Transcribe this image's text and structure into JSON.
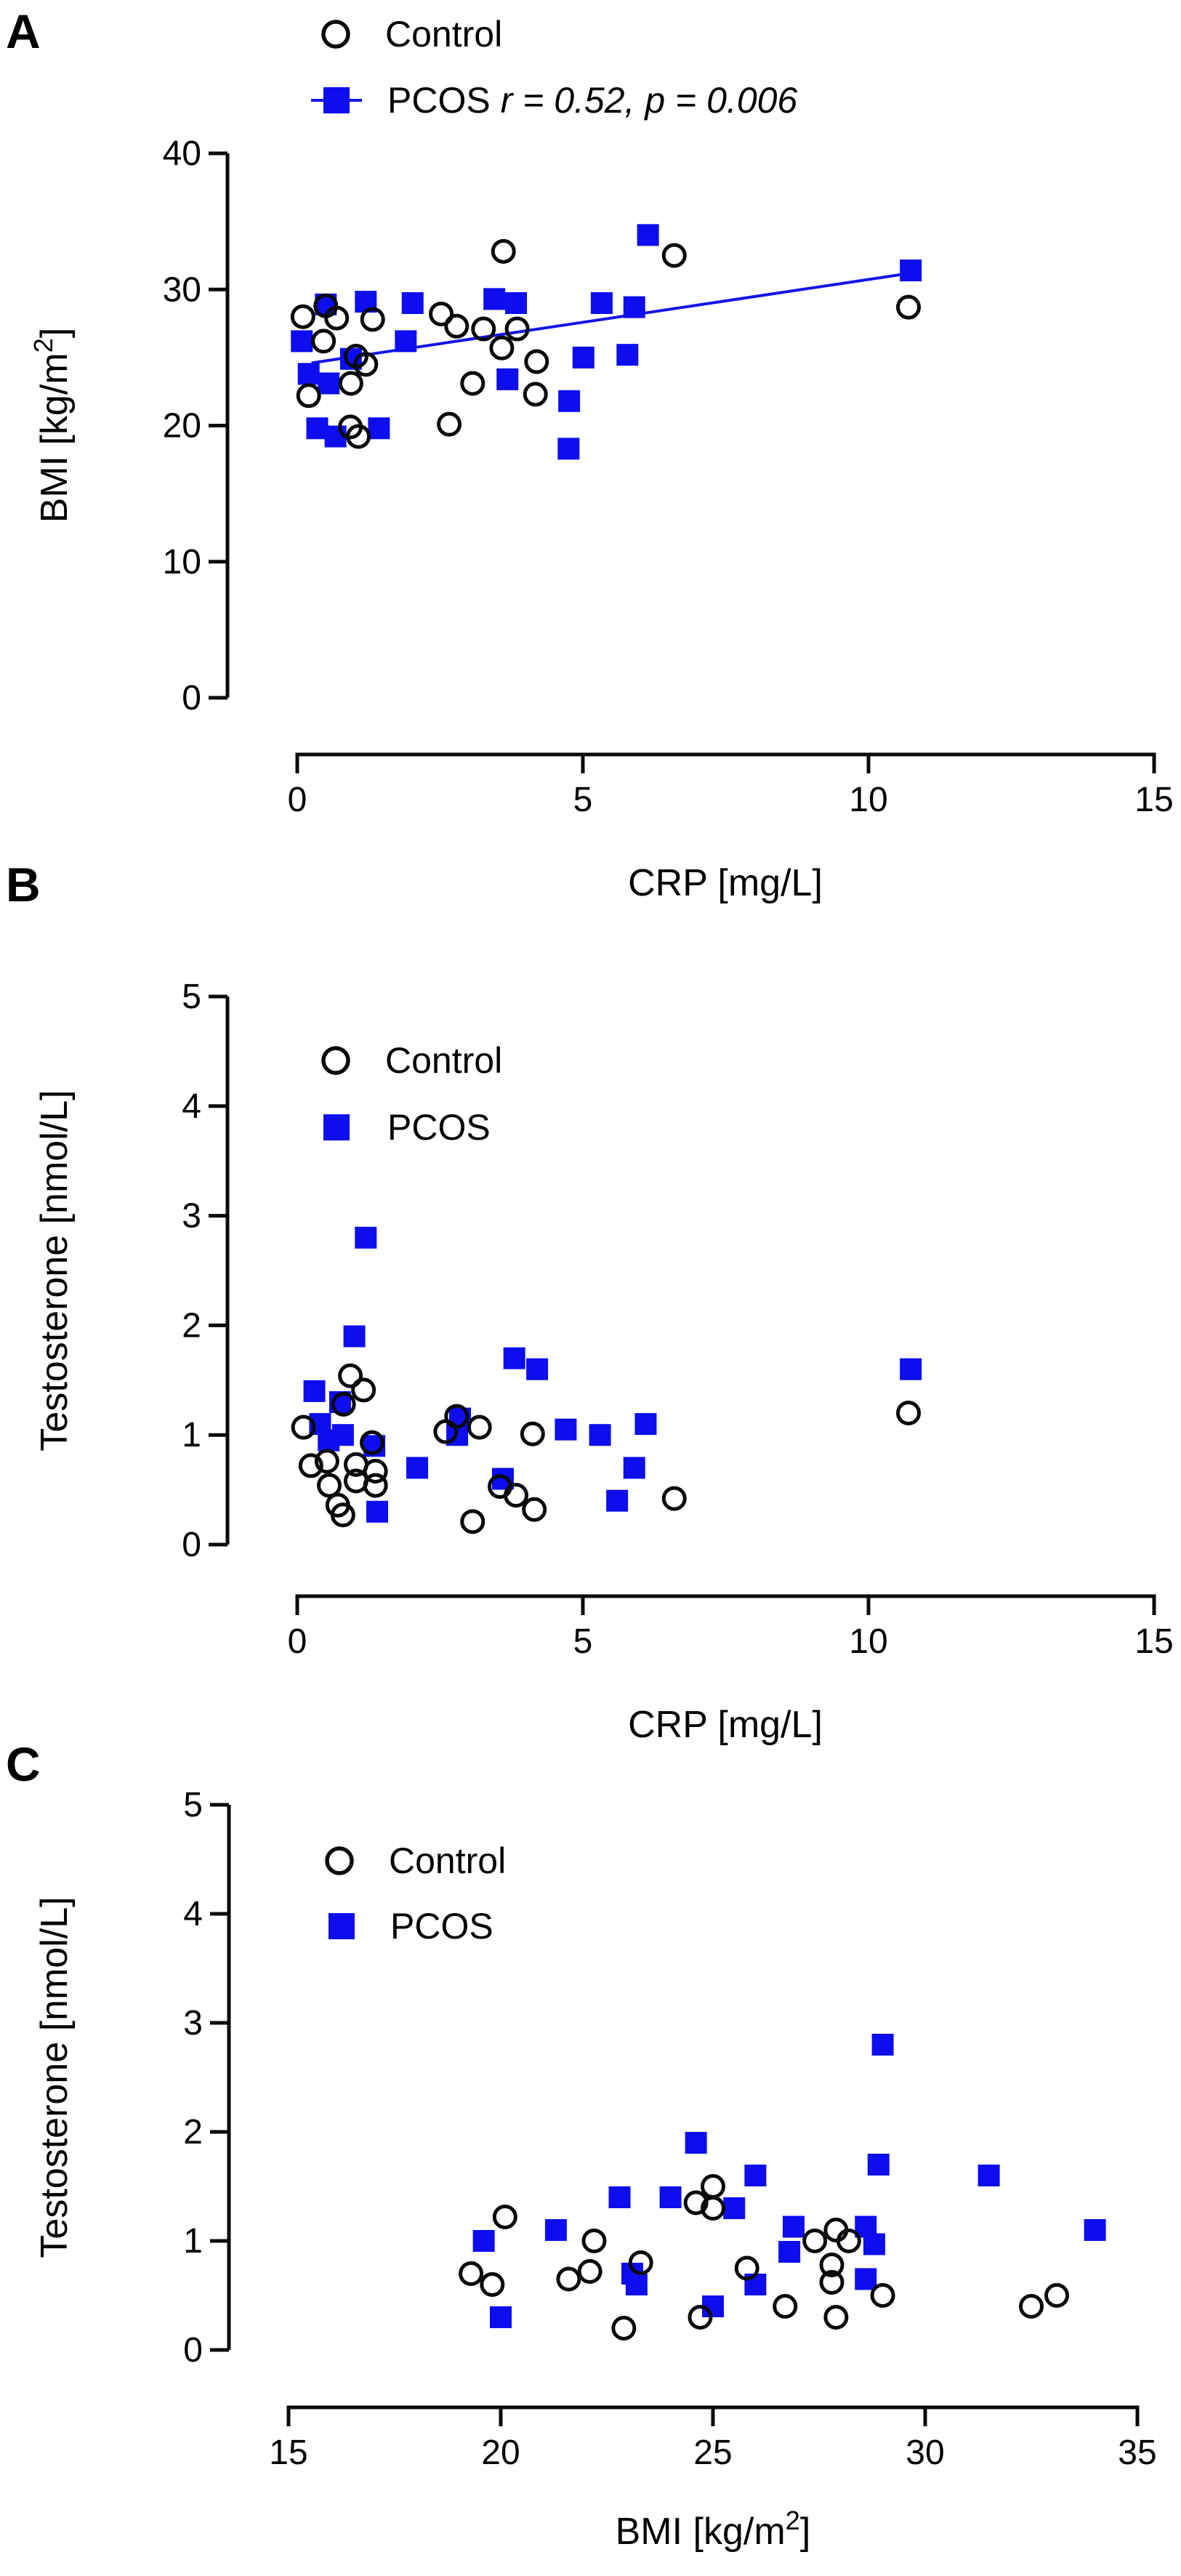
{
  "figure": {
    "background": "#ffffff",
    "marker_color_control": "#0a0a0a",
    "marker_color_pcos": "#0d0df0",
    "trend_color": "#1515e8"
  },
  "chart_data": [
    {
      "type": "scatter",
      "panel_label": "A",
      "xlabel": "CRP [mg/L]",
      "xlabel_parts": [
        {
          "t": "CRP [mg/L]"
        }
      ],
      "ylabel": "BMI [kg/m2]",
      "ylabel_parts": [
        {
          "t": "BMI [kg/m"
        },
        {
          "t": "2",
          "sup": true
        },
        {
          "t": "]"
        }
      ],
      "xlim": [
        0,
        15
      ],
      "ylim": [
        0,
        40
      ],
      "xticks": [
        0,
        5,
        10,
        15
      ],
      "yticks": [
        0,
        10,
        20,
        30,
        40
      ],
      "grid": false,
      "legend": {
        "position": "top-left-above-plot",
        "items": [
          {
            "label": "Control",
            "marker": "circle",
            "color": "#0a0a0a"
          },
          {
            "label": "PCOS ",
            "stats": "r = 0.52, p = 0.006",
            "marker": "square",
            "color": "#0d0df0",
            "line_through_marker": true
          }
        ]
      },
      "series": [
        {
          "name": "Control",
          "marker": "circle",
          "color": "#0a0a0a",
          "points": [
            [
              0.1,
              28.0
            ],
            [
              0.2,
              22.2
            ],
            [
              0.46,
              26.2
            ],
            [
              0.5,
              28.8
            ],
            [
              0.69,
              27.9
            ],
            [
              0.93,
              19.9
            ],
            [
              0.94,
              23.1
            ],
            [
              1.03,
              25.1
            ],
            [
              1.07,
              19.2
            ],
            [
              1.2,
              24.5
            ],
            [
              1.32,
              27.8
            ],
            [
              2.52,
              28.2
            ],
            [
              2.66,
              20.1
            ],
            [
              2.79,
              27.3
            ],
            [
              3.07,
              23.1
            ],
            [
              3.26,
              27.1
            ],
            [
              3.58,
              25.7
            ],
            [
              3.61,
              32.8
            ],
            [
              3.85,
              27.1
            ],
            [
              4.17,
              22.3
            ],
            [
              4.19,
              24.7
            ],
            [
              6.6,
              32.5
            ],
            [
              10.7,
              28.7
            ]
          ]
        },
        {
          "name": "PCOS",
          "marker": "square",
          "color": "#0d0df0",
          "points": [
            [
              0.08,
              26.2
            ],
            [
              0.2,
              23.8
            ],
            [
              0.35,
              19.8
            ],
            [
              0.5,
              28.9
            ],
            [
              0.55,
              23.1
            ],
            [
              0.67,
              19.2
            ],
            [
              0.94,
              24.9
            ],
            [
              1.2,
              29.1
            ],
            [
              1.43,
              19.8
            ],
            [
              1.9,
              26.2
            ],
            [
              2.02,
              29.0
            ],
            [
              3.45,
              29.3
            ],
            [
              3.68,
              23.4
            ],
            [
              3.83,
              29.0
            ],
            [
              4.75,
              18.3
            ],
            [
              4.76,
              21.8
            ],
            [
              5.01,
              25.0
            ],
            [
              5.33,
              29.0
            ],
            [
              5.78,
              25.2
            ],
            [
              5.9,
              28.7
            ],
            [
              6.14,
              34.0
            ],
            [
              10.74,
              31.4
            ]
          ]
        }
      ],
      "trend_line": {
        "x1": 0.25,
        "y1": 24.6,
        "x2": 10.74,
        "y2": 31.2,
        "color": "#1515e8",
        "r": "0.52",
        "p": "0.006"
      }
    },
    {
      "type": "scatter",
      "panel_label": "B",
      "xlabel": "CRP [mg/L]",
      "xlabel_parts": [
        {
          "t": "CRP [mg/L]"
        }
      ],
      "ylabel": "Testosterone [nmol/L]",
      "ylabel_parts": [
        {
          "t": "Testosterone [nmol/L]"
        }
      ],
      "xlim": [
        0,
        15
      ],
      "ylim": [
        0,
        5
      ],
      "xticks": [
        0,
        5,
        10,
        15
      ],
      "yticks": [
        0,
        1,
        2,
        3,
        4,
        5
      ],
      "grid": false,
      "legend": {
        "position": "upper-left-inside",
        "items": [
          {
            "label": "Control",
            "marker": "circle",
            "color": "#0a0a0a"
          },
          {
            "label": "PCOS",
            "marker": "square",
            "color": "#0d0df0"
          }
        ]
      },
      "series": [
        {
          "name": "Control",
          "marker": "circle",
          "color": "#0a0a0a",
          "points": [
            [
              0.11,
              1.07
            ],
            [
              0.24,
              0.72
            ],
            [
              0.52,
              0.76
            ],
            [
              0.56,
              0.54
            ],
            [
              0.71,
              0.36
            ],
            [
              0.8,
              0.27
            ],
            [
              0.81,
              1.28
            ],
            [
              0.93,
              1.54
            ],
            [
              1.03,
              0.73
            ],
            [
              1.03,
              0.58
            ],
            [
              1.16,
              1.41
            ],
            [
              1.31,
              0.93
            ],
            [
              1.37,
              0.67
            ],
            [
              1.37,
              0.54
            ],
            [
              2.6,
              1.03
            ],
            [
              2.79,
              1.17
            ],
            [
              3.07,
              0.21
            ],
            [
              3.19,
              1.07
            ],
            [
              3.55,
              0.53
            ],
            [
              3.83,
              0.45
            ],
            [
              4.12,
              1.01
            ],
            [
              4.15,
              0.32
            ],
            [
              6.6,
              0.42
            ],
            [
              10.7,
              1.2
            ]
          ]
        },
        {
          "name": "PCOS",
          "marker": "square",
          "color": "#0d0df0",
          "points": [
            [
              0.3,
              1.4
            ],
            [
              0.4,
              1.1
            ],
            [
              0.55,
              0.95
            ],
            [
              0.75,
              1.3
            ],
            [
              0.8,
              1.0
            ],
            [
              1.0,
              1.9
            ],
            [
              1.2,
              2.8
            ],
            [
              1.35,
              0.9
            ],
            [
              1.4,
              0.3
            ],
            [
              2.1,
              0.7
            ],
            [
              2.8,
              1.0
            ],
            [
              2.85,
              1.15
            ],
            [
              3.6,
              0.6
            ],
            [
              3.8,
              1.7
            ],
            [
              4.2,
              1.6
            ],
            [
              4.7,
              1.05
            ],
            [
              5.3,
              1.0
            ],
            [
              5.6,
              0.4
            ],
            [
              5.9,
              0.7
            ],
            [
              6.1,
              1.1
            ],
            [
              10.74,
              1.6
            ]
          ]
        }
      ]
    },
    {
      "type": "scatter",
      "panel_label": "C",
      "xlabel": "BMI [kg/m2]",
      "xlabel_parts": [
        {
          "t": "BMI [kg/m"
        },
        {
          "t": "2",
          "sup": true
        },
        {
          "t": "]"
        }
      ],
      "ylabel": "Testosterone [nmol/L]",
      "ylabel_parts": [
        {
          "t": "Testosterone [nmol/L]"
        }
      ],
      "xlim": [
        15,
        35
      ],
      "ylim": [
        0,
        5
      ],
      "xticks": [
        15,
        20,
        25,
        30,
        35
      ],
      "yticks": [
        0,
        1,
        2,
        3,
        4,
        5
      ],
      "grid": false,
      "legend": {
        "position": "upper-left-inside",
        "items": [
          {
            "label": "Control",
            "marker": "circle",
            "color": "#0a0a0a"
          },
          {
            "label": "PCOS",
            "marker": "square",
            "color": "#0d0df0"
          }
        ]
      },
      "series": [
        {
          "name": "Control",
          "marker": "circle",
          "color": "#0a0a0a",
          "points": [
            [
              19.3,
              0.7
            ],
            [
              19.8,
              0.6
            ],
            [
              20.1,
              1.22
            ],
            [
              21.6,
              0.65
            ],
            [
              22.1,
              0.72
            ],
            [
              22.2,
              1.0
            ],
            [
              22.9,
              0.2
            ],
            [
              23.3,
              0.8
            ],
            [
              24.6,
              1.35
            ],
            [
              24.7,
              0.3
            ],
            [
              25.0,
              1.5
            ],
            [
              25.0,
              1.3
            ],
            [
              25.8,
              0.75
            ],
            [
              26.7,
              0.4
            ],
            [
              27.4,
              1.0
            ],
            [
              27.8,
              0.78
            ],
            [
              27.8,
              0.62
            ],
            [
              27.9,
              1.1
            ],
            [
              27.9,
              0.3
            ],
            [
              28.2,
              1.0
            ],
            [
              29.0,
              0.5
            ],
            [
              32.5,
              0.4
            ],
            [
              33.1,
              0.5
            ]
          ]
        },
        {
          "name": "PCOS",
          "marker": "square",
          "color": "#0d0df0",
          "points": [
            [
              19.6,
              1.0
            ],
            [
              20.0,
              0.3
            ],
            [
              21.3,
              1.1
            ],
            [
              22.8,
              1.4
            ],
            [
              23.1,
              0.7
            ],
            [
              23.2,
              0.6
            ],
            [
              24.0,
              1.4
            ],
            [
              24.6,
              1.9
            ],
            [
              25.0,
              0.4
            ],
            [
              25.5,
              1.3
            ],
            [
              26.0,
              1.6
            ],
            [
              26.0,
              0.6
            ],
            [
              26.8,
              0.9
            ],
            [
              26.9,
              1.13
            ],
            [
              28.6,
              1.13
            ],
            [
              28.6,
              0.65
            ],
            [
              28.8,
              0.97
            ],
            [
              28.9,
              1.7
            ],
            [
              29.0,
              2.8
            ],
            [
              31.5,
              1.6
            ],
            [
              34.0,
              1.1
            ]
          ]
        }
      ]
    }
  ]
}
